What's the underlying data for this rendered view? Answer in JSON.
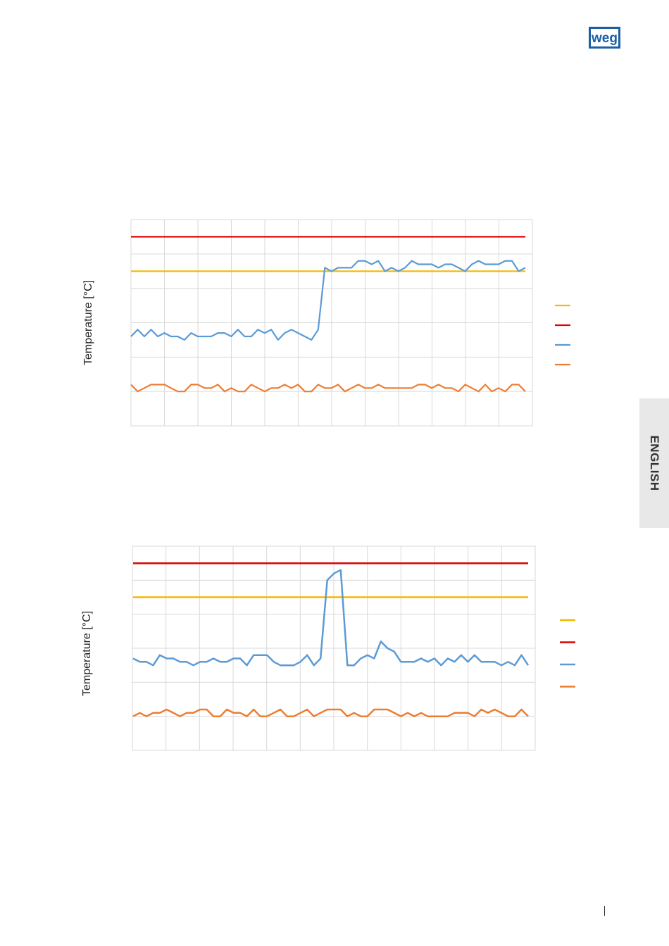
{
  "header": {
    "logo_text": "weg"
  },
  "side_tab": {
    "label": "ENGLISH"
  },
  "colors": {
    "yellow": "#f5b800",
    "red": "#e10000",
    "blue": "#5b9bd5",
    "orange": "#ed7d31",
    "grid": "#d9d9d9"
  },
  "chart_data": [
    {
      "type": "line",
      "ylabel": "Temperature [°C]",
      "ylim": [
        0,
        6
      ],
      "grid": true,
      "legend_position": "right",
      "series": [
        {
          "color": "yellow",
          "values": [
            4.5,
            4.5
          ]
        },
        {
          "color": "red",
          "values": [
            5.5,
            5.5
          ]
        },
        {
          "color": "blue",
          "values": [
            2.6,
            2.8,
            2.6,
            2.8,
            2.6,
            2.7,
            2.6,
            2.6,
            2.5,
            2.7,
            2.6,
            2.6,
            2.6,
            2.7,
            2.7,
            2.6,
            2.8,
            2.6,
            2.6,
            2.8,
            2.7,
            2.8,
            2.5,
            2.7,
            2.8,
            2.7,
            2.6,
            2.5,
            2.8,
            4.6,
            4.5,
            4.6,
            4.6,
            4.6,
            4.8,
            4.8,
            4.7,
            4.8,
            4.5,
            4.6,
            4.5,
            4.6,
            4.8,
            4.7,
            4.7,
            4.7,
            4.6,
            4.7,
            4.7,
            4.6,
            4.5,
            4.7,
            4.8,
            4.7,
            4.7,
            4.7,
            4.8,
            4.8,
            4.5,
            4.6
          ]
        },
        {
          "color": "orange",
          "values": [
            1.2,
            1.0,
            1.1,
            1.2,
            1.2,
            1.2,
            1.1,
            1.0,
            1.0,
            1.2,
            1.2,
            1.1,
            1.1,
            1.2,
            1.0,
            1.1,
            1.0,
            1.0,
            1.2,
            1.1,
            1.0,
            1.1,
            1.1,
            1.2,
            1.1,
            1.2,
            1.0,
            1.0,
            1.2,
            1.1,
            1.1,
            1.2,
            1.0,
            1.1,
            1.2,
            1.1,
            1.1,
            1.2,
            1.1,
            1.1,
            1.1,
            1.1,
            1.1,
            1.2,
            1.2,
            1.1,
            1.2,
            1.1,
            1.1,
            1.0,
            1.2,
            1.1,
            1.0,
            1.2,
            1.0,
            1.1,
            1.0,
            1.2,
            1.2,
            1.0
          ]
        }
      ]
    },
    {
      "type": "line",
      "ylabel": "Temperature [°C]",
      "ylim": [
        0,
        6
      ],
      "grid": true,
      "legend_position": "right",
      "series": [
        {
          "color": "yellow",
          "values": [
            4.5,
            4.5
          ]
        },
        {
          "color": "red",
          "values": [
            5.5,
            5.5
          ]
        },
        {
          "color": "blue",
          "values": [
            2.7,
            2.6,
            2.6,
            2.5,
            2.8,
            2.7,
            2.7,
            2.6,
            2.6,
            2.5,
            2.6,
            2.6,
            2.7,
            2.6,
            2.6,
            2.7,
            2.7,
            2.5,
            2.8,
            2.8,
            2.8,
            2.6,
            2.5,
            2.5,
            2.5,
            2.6,
            2.8,
            2.5,
            2.7,
            5.0,
            5.2,
            5.3,
            2.5,
            2.5,
            2.7,
            2.8,
            2.7,
            3.2,
            3.0,
            2.9,
            2.6,
            2.6,
            2.6,
            2.7,
            2.6,
            2.7,
            2.5,
            2.7,
            2.6,
            2.8,
            2.6,
            2.8,
            2.6,
            2.6,
            2.6,
            2.5,
            2.6,
            2.5,
            2.8,
            2.5
          ]
        },
        {
          "color": "orange",
          "values": [
            1.0,
            1.1,
            1.0,
            1.1,
            1.1,
            1.2,
            1.1,
            1.0,
            1.1,
            1.1,
            1.2,
            1.2,
            1.0,
            1.0,
            1.2,
            1.1,
            1.1,
            1.0,
            1.2,
            1.0,
            1.0,
            1.1,
            1.2,
            1.0,
            1.0,
            1.1,
            1.2,
            1.0,
            1.1,
            1.2,
            1.2,
            1.2,
            1.0,
            1.1,
            1.0,
            1.0,
            1.2,
            1.2,
            1.2,
            1.1,
            1.0,
            1.1,
            1.0,
            1.1,
            1.0,
            1.0,
            1.0,
            1.0,
            1.1,
            1.1,
            1.1,
            1.0,
            1.2,
            1.1,
            1.2,
            1.1,
            1.0,
            1.0,
            1.2,
            1.0
          ]
        }
      ]
    }
  ]
}
